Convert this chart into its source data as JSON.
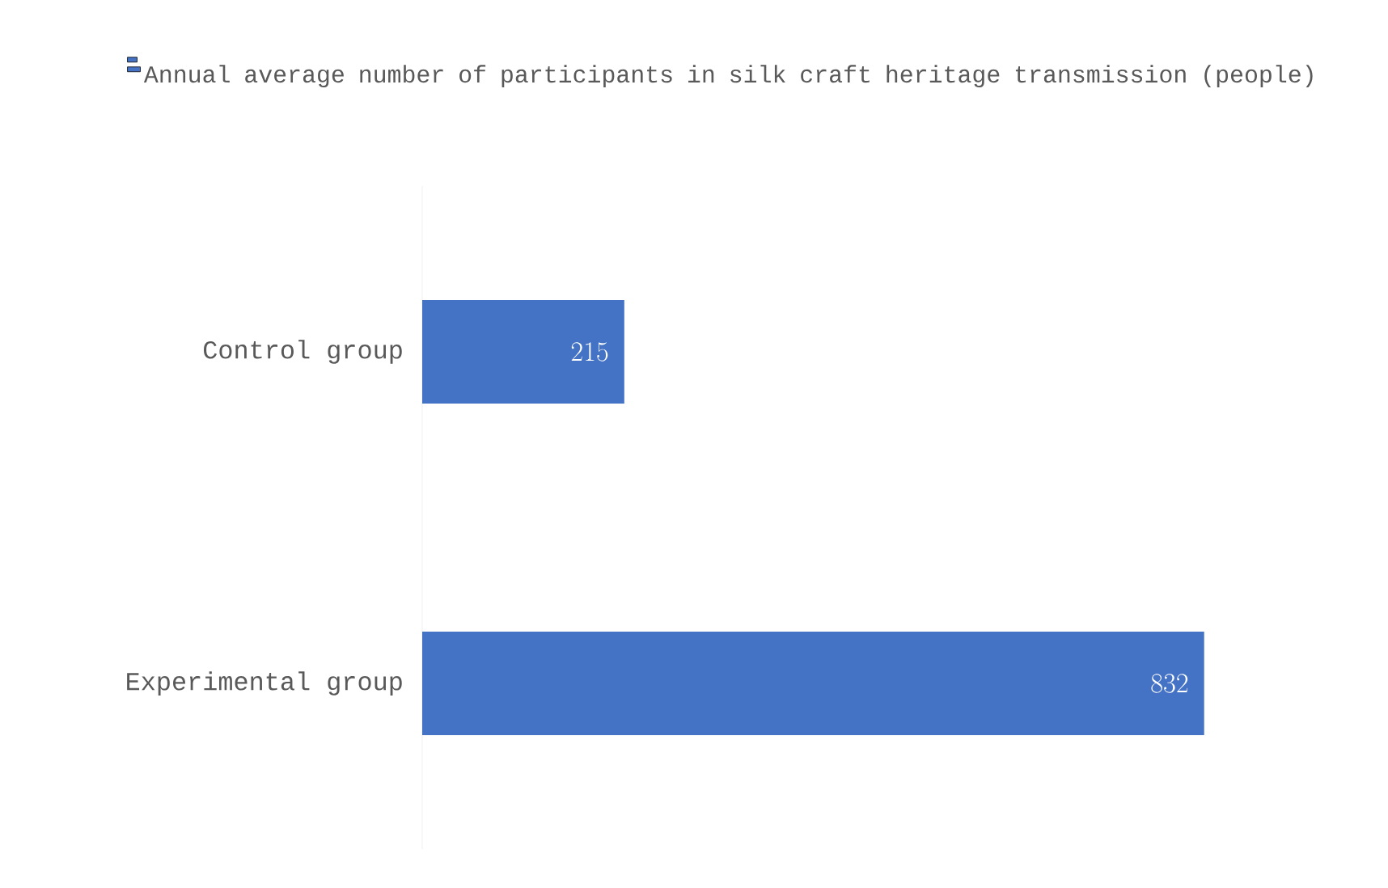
{
  "chart_data": {
    "type": "bar",
    "orientation": "horizontal",
    "categories": [
      "Control group",
      "Experimental group"
    ],
    "series": [
      {
        "name": "Annual average number of participants in silk craft heritage transmission (people)",
        "color": "#4472c4",
        "values": [
          215,
          832
        ]
      }
    ],
    "data_labels": true,
    "legend": "top"
  }
}
